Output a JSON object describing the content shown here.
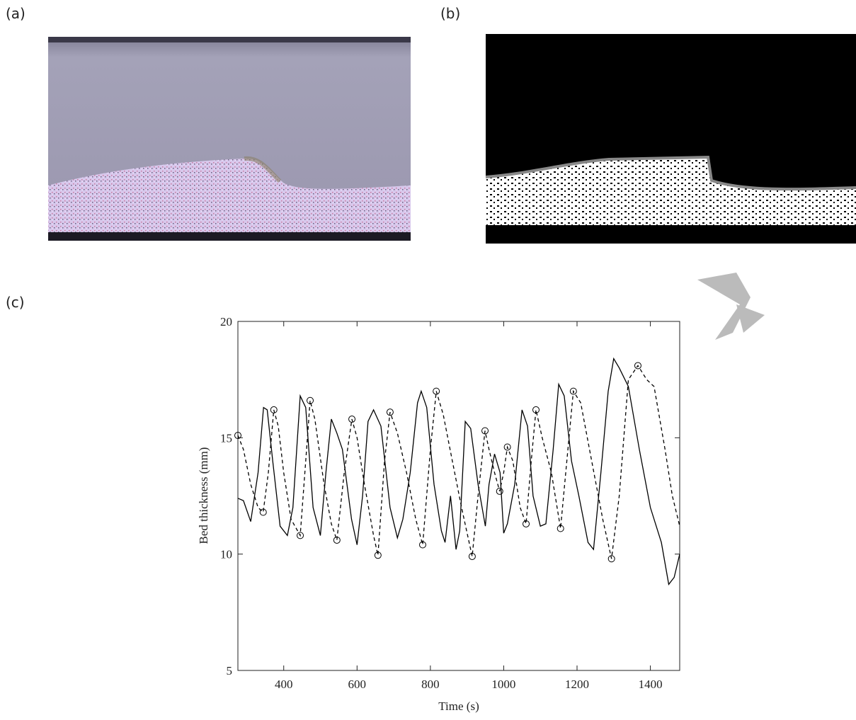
{
  "panels": [
    "(a)",
    "(b)",
    "(c)"
  ],
  "chart_data": {
    "type": "line",
    "xlabel": "Time (s)",
    "ylabel": "Bed thickness (mm)",
    "xlim": [
      275,
      1480
    ],
    "ylim": [
      5,
      20
    ],
    "xticks": [
      400,
      600,
      800,
      1000,
      1200,
      1400
    ],
    "yticks": [
      5,
      10,
      15,
      20
    ],
    "grid": false,
    "series": [
      {
        "color": "#000000",
        "style": "solid",
        "x": [
          275,
          290,
          310,
          330,
          345,
          355,
          370,
          390,
          410,
          425,
          445,
          460,
          480,
          500,
          515,
          530,
          545,
          560,
          585,
          600,
          615,
          630,
          645,
          665,
          690,
          710,
          725,
          745,
          765,
          775,
          790,
          810,
          830,
          840,
          855,
          870,
          880,
          895,
          910,
          930,
          950,
          960,
          975,
          990,
          1000,
          1010,
          1030,
          1050,
          1065,
          1080,
          1100,
          1115,
          1135,
          1150,
          1165,
          1185,
          1205,
          1230,
          1245,
          1265,
          1285,
          1300,
          1315,
          1340,
          1370,
          1400,
          1430,
          1450,
          1465,
          1480
        ],
        "values": [
          12.4,
          12.3,
          11.4,
          13.5,
          16.3,
          16.2,
          14,
          11.2,
          10.8,
          12,
          16.8,
          16.3,
          12,
          10.8,
          13.5,
          15.8,
          15.2,
          14.5,
          11.5,
          10.4,
          12.5,
          15.7,
          16.2,
          15.5,
          12,
          10.7,
          11.5,
          13.5,
          16.5,
          17,
          16.3,
          13,
          11,
          10.5,
          12.5,
          10.2,
          11,
          15.7,
          15.4,
          13,
          11.2,
          13,
          14.3,
          13.5,
          10.9,
          11.3,
          13,
          16.2,
          15.5,
          12.5,
          11.2,
          11.3,
          14.5,
          17.3,
          16.8,
          14,
          12.5,
          10.5,
          10.2,
          13.5,
          17,
          18.4,
          18,
          17.2,
          14.5,
          12,
          10.5,
          8.7,
          9,
          10
        ]
      },
      {
        "color": "#000000",
        "style": "dashed",
        "x": [
          275,
          290,
          310,
          330,
          344,
          358,
          373,
          385,
          400,
          420,
          445,
          460,
          472,
          485,
          510,
          530,
          545,
          565,
          586,
          600,
          620,
          645,
          657,
          675,
          690,
          710,
          735,
          760,
          779,
          800,
          816,
          835,
          860,
          885,
          914,
          930,
          949,
          960,
          975,
          989,
          1000,
          1010,
          1025,
          1045,
          1061,
          1075,
          1088,
          1105,
          1130,
          1155,
          1175,
          1190,
          1210,
          1240,
          1270,
          1294,
          1315,
          1340,
          1366,
          1390,
          1410,
          1440,
          1460,
          1480
        ],
        "values": [
          15.1,
          14.5,
          13,
          12,
          11.8,
          13.5,
          16.2,
          15.5,
          13.5,
          11.5,
          10.8,
          14,
          16.6,
          15.8,
          13,
          11.3,
          10.6,
          13.5,
          15.8,
          15,
          13,
          10.8,
          9.95,
          14,
          16.1,
          15.2,
          13.5,
          11.5,
          10.4,
          14.5,
          17,
          16,
          14,
          12,
          9.9,
          12.5,
          15.3,
          14.5,
          13.5,
          12.7,
          13.5,
          14.6,
          14,
          12,
          11.3,
          14,
          16.2,
          15,
          13.5,
          11.1,
          14.5,
          17,
          16.5,
          14,
          11.5,
          9.8,
          12.5,
          17.5,
          18.1,
          17.5,
          17.2,
          14.5,
          12.5,
          11.2
        ]
      },
      {
        "color": "#000000",
        "style": "markers",
        "x": [
          275,
          344,
          373,
          445,
          472,
          545,
          586,
          657,
          690,
          779,
          816,
          914,
          949,
          989,
          1010,
          1061,
          1088,
          1155,
          1190,
          1294,
          1366
        ],
        "values": [
          15.1,
          11.8,
          16.2,
          10.8,
          16.6,
          10.6,
          15.8,
          9.95,
          16.1,
          10.4,
          17,
          9.9,
          15.3,
          12.7,
          14.6,
          11.3,
          16.2,
          11.1,
          17,
          9.8,
          18.1
        ]
      }
    ]
  }
}
